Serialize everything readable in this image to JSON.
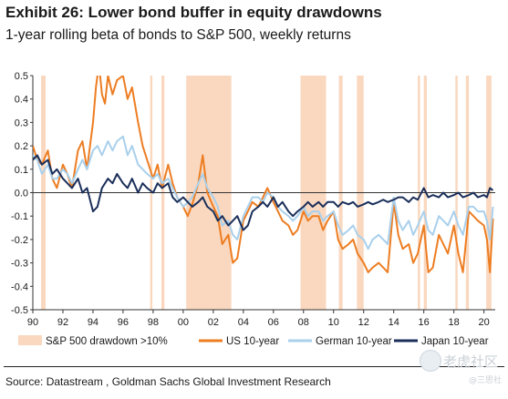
{
  "header": {
    "title": "Exhibit 26: Lower bond buffer in equity drawdowns",
    "subtitle": "1-year rolling beta of bonds to S&P 500, weekly returns"
  },
  "footer": {
    "source": "Source: Datastream , Goldman Sachs Global Investment Research"
  },
  "watermark": {
    "text": "老虎社区",
    "sub": "@三思社"
  },
  "chart_data": {
    "type": "line",
    "title": "Exhibit 26: Lower bond buffer in equity drawdowns",
    "subtitle": "1-year rolling beta of bonds to S&P 500, weekly returns",
    "xlabel": "",
    "ylabel": "",
    "xlim": [
      1990,
      2020.75
    ],
    "ylim": [
      -0.5,
      0.5
    ],
    "grid": false,
    "legend_position": "bottom",
    "x_tick_labels": [
      "90",
      "92",
      "94",
      "96",
      "98",
      "00",
      "02",
      "04",
      "06",
      "08",
      "10",
      "12",
      "14",
      "16",
      "18",
      "20"
    ],
    "x_tick_values": [
      1990,
      1992,
      1994,
      1996,
      1998,
      2000,
      2002,
      2004,
      2006,
      2008,
      2010,
      2012,
      2014,
      2016,
      2018,
      2020
    ],
    "y_tick_labels": [
      "0.5",
      "0.4",
      "0.3",
      "0.2",
      "0.1",
      "0.0",
      "-0.1",
      "-0.2",
      "-0.3",
      "-0.4",
      "-0.5"
    ],
    "y_tick_values": [
      0.5,
      0.4,
      0.3,
      0.2,
      0.1,
      0.0,
      -0.1,
      -0.2,
      -0.3,
      -0.4,
      -0.5
    ],
    "shaded_label": "S&P 500 drawdown >10%",
    "shaded_color": "#f9d8bf",
    "shaded_periods": [
      [
        1990.55,
        1990.85
      ],
      [
        1997.8,
        1997.95
      ],
      [
        1998.55,
        1998.75
      ],
      [
        2000.2,
        2003.2
      ],
      [
        2007.8,
        2009.5
      ],
      [
        2010.35,
        2010.6
      ],
      [
        2011.55,
        2012.0
      ],
      [
        2015.6,
        2015.75
      ],
      [
        2016.0,
        2016.2
      ],
      [
        2018.1,
        2018.25
      ],
      [
        2018.8,
        2019.0
      ],
      [
        2020.15,
        2020.5
      ]
    ],
    "series": [
      {
        "name": "US 10-year",
        "color": "#ed7d22",
        "x": [
          1990.0,
          1990.3,
          1990.6,
          1991.0,
          1991.3,
          1991.6,
          1992.0,
          1992.3,
          1992.6,
          1993.0,
          1993.3,
          1993.6,
          1994.0,
          1994.2,
          1994.4,
          1994.6,
          1994.8,
          1995.0,
          1995.3,
          1995.6,
          1996.0,
          1996.3,
          1996.6,
          1997.0,
          1997.3,
          1997.6,
          1998.0,
          1998.3,
          1998.6,
          1999.0,
          1999.3,
          1999.6,
          2000.0,
          2000.3,
          2000.6,
          2001.0,
          2001.3,
          2001.6,
          2002.0,
          2002.3,
          2002.6,
          2003.0,
          2003.3,
          2003.6,
          2004.0,
          2004.3,
          2004.6,
          2005.0,
          2005.3,
          2005.6,
          2006.0,
          2006.3,
          2006.6,
          2007.0,
          2007.3,
          2007.6,
          2008.0,
          2008.3,
          2008.6,
          2009.0,
          2009.3,
          2009.6,
          2010.0,
          2010.3,
          2010.6,
          2011.0,
          2011.3,
          2011.6,
          2012.0,
          2012.3,
          2012.6,
          2013.0,
          2013.3,
          2013.6,
          2014.0,
          2014.3,
          2014.6,
          2015.0,
          2015.3,
          2015.6,
          2016.0,
          2016.3,
          2016.6,
          2017.0,
          2017.3,
          2017.6,
          2018.0,
          2018.3,
          2018.6,
          2019.0,
          2019.3,
          2019.6,
          2020.0,
          2020.2,
          2020.4,
          2020.6
        ],
        "values": [
          0.2,
          0.14,
          0.12,
          0.18,
          0.06,
          0.02,
          0.12,
          0.08,
          0.02,
          0.18,
          0.22,
          0.1,
          0.3,
          0.45,
          0.55,
          0.42,
          0.38,
          0.5,
          0.42,
          0.48,
          0.5,
          0.4,
          0.45,
          0.3,
          0.2,
          0.14,
          0.06,
          0.12,
          0.02,
          0.12,
          0.04,
          -0.02,
          -0.06,
          -0.1,
          -0.05,
          0.04,
          0.16,
          0.0,
          -0.06,
          -0.1,
          -0.22,
          -0.18,
          -0.3,
          -0.28,
          -0.12,
          -0.08,
          -0.04,
          -0.06,
          -0.02,
          0.02,
          -0.04,
          -0.08,
          -0.12,
          -0.14,
          -0.18,
          -0.16,
          -0.08,
          -0.12,
          -0.1,
          -0.1,
          -0.16,
          -0.12,
          -0.08,
          -0.2,
          -0.24,
          -0.22,
          -0.2,
          -0.26,
          -0.3,
          -0.34,
          -0.32,
          -0.3,
          -0.32,
          -0.34,
          -0.04,
          -0.18,
          -0.24,
          -0.22,
          -0.3,
          -0.26,
          -0.14,
          -0.34,
          -0.32,
          -0.18,
          -0.22,
          -0.26,
          -0.14,
          -0.26,
          -0.34,
          -0.08,
          -0.1,
          -0.12,
          -0.14,
          -0.2,
          -0.34,
          -0.11
        ]
      },
      {
        "name": "German 10-year",
        "color": "#a9d0ec",
        "x": [
          1990.0,
          1990.3,
          1990.6,
          1991.0,
          1991.3,
          1991.6,
          1992.0,
          1992.3,
          1992.6,
          1993.0,
          1993.3,
          1993.6,
          1994.0,
          1994.3,
          1994.6,
          1995.0,
          1995.3,
          1995.6,
          1996.0,
          1996.3,
          1996.6,
          1997.0,
          1997.3,
          1997.6,
          1998.0,
          1998.3,
          1998.6,
          1999.0,
          1999.3,
          1999.6,
          2000.0,
          2000.3,
          2000.6,
          2001.0,
          2001.3,
          2001.6,
          2002.0,
          2002.3,
          2002.6,
          2003.0,
          2003.3,
          2003.6,
          2004.0,
          2004.3,
          2004.6,
          2005.0,
          2005.3,
          2005.6,
          2006.0,
          2006.3,
          2006.6,
          2007.0,
          2007.3,
          2007.6,
          2008.0,
          2008.3,
          2008.6,
          2009.0,
          2009.3,
          2009.6,
          2010.0,
          2010.3,
          2010.6,
          2011.0,
          2011.3,
          2011.6,
          2012.0,
          2012.3,
          2012.6,
          2013.0,
          2013.3,
          2013.6,
          2014.0,
          2014.3,
          2014.6,
          2015.0,
          2015.3,
          2015.6,
          2016.0,
          2016.3,
          2016.6,
          2017.0,
          2017.3,
          2017.6,
          2018.0,
          2018.3,
          2018.6,
          2019.0,
          2019.3,
          2019.6,
          2020.0,
          2020.2,
          2020.4,
          2020.6
        ],
        "values": [
          0.16,
          0.14,
          0.08,
          0.12,
          0.06,
          0.06,
          0.1,
          0.08,
          0.04,
          0.1,
          0.14,
          0.1,
          0.18,
          0.2,
          0.16,
          0.22,
          0.18,
          0.22,
          0.24,
          0.16,
          0.2,
          0.12,
          0.1,
          0.08,
          0.06,
          0.08,
          0.04,
          0.06,
          0.02,
          -0.02,
          -0.06,
          -0.04,
          -0.02,
          0.04,
          0.08,
          0.02,
          -0.02,
          -0.06,
          -0.14,
          -0.12,
          -0.18,
          -0.2,
          -0.1,
          -0.06,
          -0.02,
          -0.02,
          -0.04,
          0.0,
          -0.02,
          -0.06,
          -0.08,
          -0.1,
          -0.12,
          -0.1,
          -0.06,
          -0.1,
          -0.08,
          -0.08,
          -0.12,
          -0.1,
          -0.08,
          -0.14,
          -0.18,
          -0.16,
          -0.14,
          -0.18,
          -0.2,
          -0.24,
          -0.2,
          -0.18,
          -0.2,
          -0.22,
          -0.02,
          -0.12,
          -0.16,
          -0.12,
          -0.18,
          -0.14,
          -0.08,
          -0.16,
          -0.18,
          -0.1,
          -0.12,
          -0.14,
          -0.08,
          -0.14,
          -0.18,
          -0.06,
          -0.06,
          -0.08,
          -0.08,
          -0.12,
          -0.2,
          -0.06
        ]
      },
      {
        "name": "Japan 10-year",
        "color": "#1b2f5a",
        "x": [
          1990.0,
          1990.3,
          1990.6,
          1991.0,
          1991.3,
          1991.6,
          1992.0,
          1992.3,
          1992.6,
          1993.0,
          1993.3,
          1993.6,
          1994.0,
          1994.3,
          1994.6,
          1995.0,
          1995.3,
          1995.6,
          1996.0,
          1996.3,
          1996.6,
          1997.0,
          1997.3,
          1997.6,
          1998.0,
          1998.3,
          1998.6,
          1999.0,
          1999.3,
          1999.6,
          2000.0,
          2000.3,
          2000.6,
          2001.0,
          2001.3,
          2001.6,
          2002.0,
          2002.3,
          2002.6,
          2003.0,
          2003.3,
          2003.6,
          2004.0,
          2004.3,
          2004.6,
          2005.0,
          2005.3,
          2005.6,
          2006.0,
          2006.3,
          2006.6,
          2007.0,
          2007.3,
          2007.6,
          2008.0,
          2008.3,
          2008.6,
          2009.0,
          2009.3,
          2009.6,
          2010.0,
          2010.3,
          2010.6,
          2011.0,
          2011.3,
          2011.6,
          2012.0,
          2012.3,
          2012.6,
          2013.0,
          2013.3,
          2013.6,
          2014.0,
          2014.3,
          2014.6,
          2015.0,
          2015.3,
          2015.6,
          2016.0,
          2016.3,
          2016.6,
          2017.0,
          2017.3,
          2017.6,
          2018.0,
          2018.3,
          2018.6,
          2019.0,
          2019.3,
          2019.6,
          2020.0,
          2020.2,
          2020.4,
          2020.6
        ],
        "values": [
          0.14,
          0.16,
          0.12,
          0.14,
          0.08,
          0.1,
          0.06,
          0.04,
          0.02,
          0.06,
          0.0,
          0.02,
          -0.08,
          -0.06,
          0.02,
          0.06,
          0.04,
          0.08,
          0.04,
          0.02,
          0.06,
          0.0,
          0.04,
          0.02,
          0.0,
          0.04,
          0.02,
          0.04,
          -0.02,
          -0.04,
          -0.02,
          -0.04,
          -0.06,
          -0.04,
          -0.02,
          -0.06,
          -0.08,
          -0.12,
          -0.1,
          -0.14,
          -0.12,
          -0.1,
          -0.16,
          -0.14,
          -0.08,
          -0.06,
          -0.04,
          -0.06,
          -0.02,
          -0.06,
          -0.04,
          -0.08,
          -0.1,
          -0.08,
          -0.06,
          -0.04,
          -0.06,
          -0.04,
          -0.06,
          -0.04,
          -0.04,
          -0.06,
          -0.04,
          -0.05,
          -0.04,
          -0.06,
          -0.05,
          -0.04,
          -0.05,
          -0.04,
          -0.03,
          -0.04,
          -0.03,
          -0.02,
          -0.02,
          -0.04,
          -0.02,
          -0.03,
          0.02,
          -0.02,
          -0.01,
          -0.02,
          0.0,
          -0.02,
          -0.01,
          0.0,
          -0.02,
          -0.01,
          0.0,
          -0.02,
          -0.01,
          -0.02,
          0.02,
          0.01
        ]
      }
    ]
  }
}
